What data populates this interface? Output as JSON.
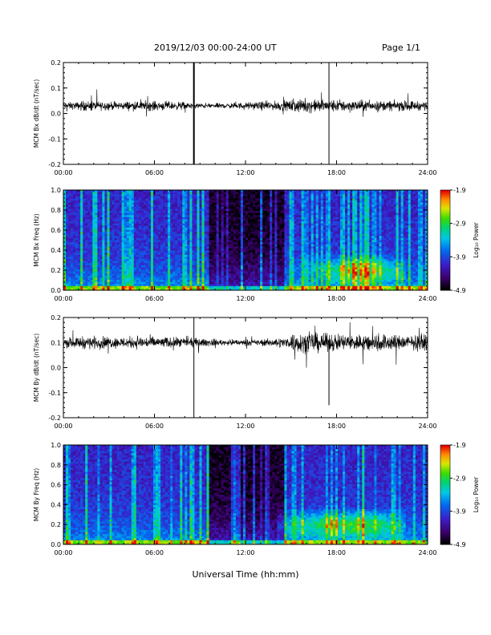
{
  "header": {
    "title": "2019/12/03  00:00-24:00 UT",
    "page": "Page 1/1"
  },
  "chart_data": [
    {
      "type": "line",
      "ylabel": "MCM Bx dB/dt (nT/sec)",
      "ylim": [
        -0.2,
        0.2
      ],
      "yticks": [
        "0.2",
        "0.1",
        "0.0",
        "-0.1",
        "-0.2"
      ],
      "xticks": [
        "00:00",
        "06:00",
        "12:00",
        "18:00",
        "24:00"
      ],
      "xlim": [
        0,
        24
      ],
      "baseline": 0.03,
      "noise": [
        0.015,
        0.02,
        0.018,
        0.016,
        0.018,
        0.02,
        0.018,
        0.016,
        0.012,
        0.01,
        0.01,
        0.012,
        0.014,
        0.018,
        0.02,
        0.025,
        0.025,
        0.025,
        0.025,
        0.022,
        0.02,
        0.02,
        0.02,
        0.018
      ],
      "spikes": [
        {
          "x": 8.6,
          "ymin": -0.2,
          "ymax": 0.2
        },
        {
          "x": 17.5,
          "ymin": -0.2,
          "ymax": 0.2
        }
      ]
    },
    {
      "type": "heatmap",
      "ylabel": "MCM Bx Freq (Hz)",
      "ylim": [
        0,
        1.0
      ],
      "yticks": [
        "1.0",
        "0.8",
        "0.6",
        "0.4",
        "0.2",
        "0.0"
      ],
      "xticks": [
        "00:00",
        "06:00",
        "12:00",
        "18:00",
        "24:00"
      ],
      "colorbar": {
        "label": "Log₁₀ Power",
        "ticks": [
          "-1.9",
          "-2.9",
          "-3.9",
          "-4.9"
        ],
        "range": [
          -4.9,
          -1.9
        ]
      }
    },
    {
      "type": "line",
      "ylabel": "MCM By dB/dt (nT/sec)",
      "ylim": [
        -0.2,
        0.2
      ],
      "yticks": [
        "0.2",
        "0.1",
        "0.0",
        "-0.1",
        "-0.2"
      ],
      "xticks": [
        "00:00",
        "06:00",
        "12:00",
        "18:00",
        "24:00"
      ],
      "xlim": [
        0,
        24
      ],
      "baseline": 0.1,
      "noise": [
        0.02,
        0.025,
        0.025,
        0.022,
        0.025,
        0.025,
        0.022,
        0.02,
        0.018,
        0.015,
        0.012,
        0.012,
        0.012,
        0.015,
        0.02,
        0.04,
        0.04,
        0.035,
        0.035,
        0.035,
        0.04,
        0.035,
        0.03,
        0.03
      ],
      "spikes": [
        {
          "x": 8.6,
          "ymin": -0.2,
          "ymax": 0.2
        },
        {
          "x": 17.5,
          "ymin": -0.15,
          "ymax": 0.1
        }
      ]
    },
    {
      "type": "heatmap",
      "ylabel": "MCM By Freq (Hz)",
      "ylim": [
        0,
        1.0
      ],
      "yticks": [
        "1.0",
        "0.8",
        "0.6",
        "0.4",
        "0.2",
        "0.0"
      ],
      "xticks": [
        "00:00",
        "06:00",
        "12:00",
        "18:00",
        "24:00"
      ],
      "colorbar": {
        "label": "Log₁₀ Power",
        "ticks": [
          "-1.9",
          "-2.9",
          "-3.9",
          "-4.9"
        ],
        "range": [
          -4.9,
          -1.9
        ]
      }
    }
  ],
  "xaxis_label": "Universal Time (hh:mm)"
}
